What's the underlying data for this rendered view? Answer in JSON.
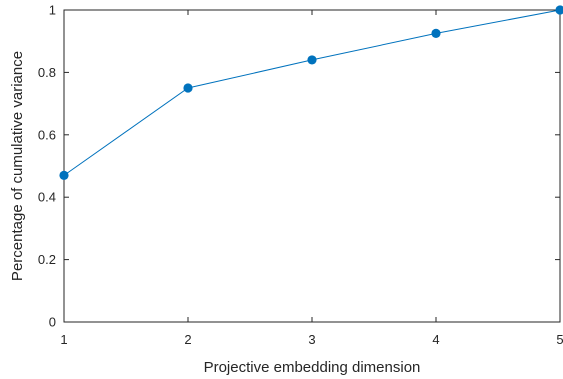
{
  "chart_data": {
    "type": "line",
    "xlabel": "Projective embedding dimension",
    "ylabel": "Percentage of cumulative variance",
    "xlim": [
      1,
      5
    ],
    "ylim": [
      0,
      1
    ],
    "xticks": [
      1,
      2,
      3,
      4,
      5
    ],
    "xtick_labels": [
      "1",
      "2",
      "3",
      "4",
      "5"
    ],
    "yticks": [
      0,
      0.2,
      0.4,
      0.6,
      0.8,
      1
    ],
    "ytick_labels": [
      "0",
      "0.2",
      "0.4",
      "0.6",
      "0.8",
      "1"
    ],
    "grid": false,
    "box": true,
    "series": [
      {
        "x": [
          1,
          2,
          3,
          4,
          5
        ],
        "values": [
          0.47,
          0.75,
          0.84,
          0.925,
          1.0
        ],
        "color": "#0072BD",
        "marker": "circle"
      }
    ]
  }
}
